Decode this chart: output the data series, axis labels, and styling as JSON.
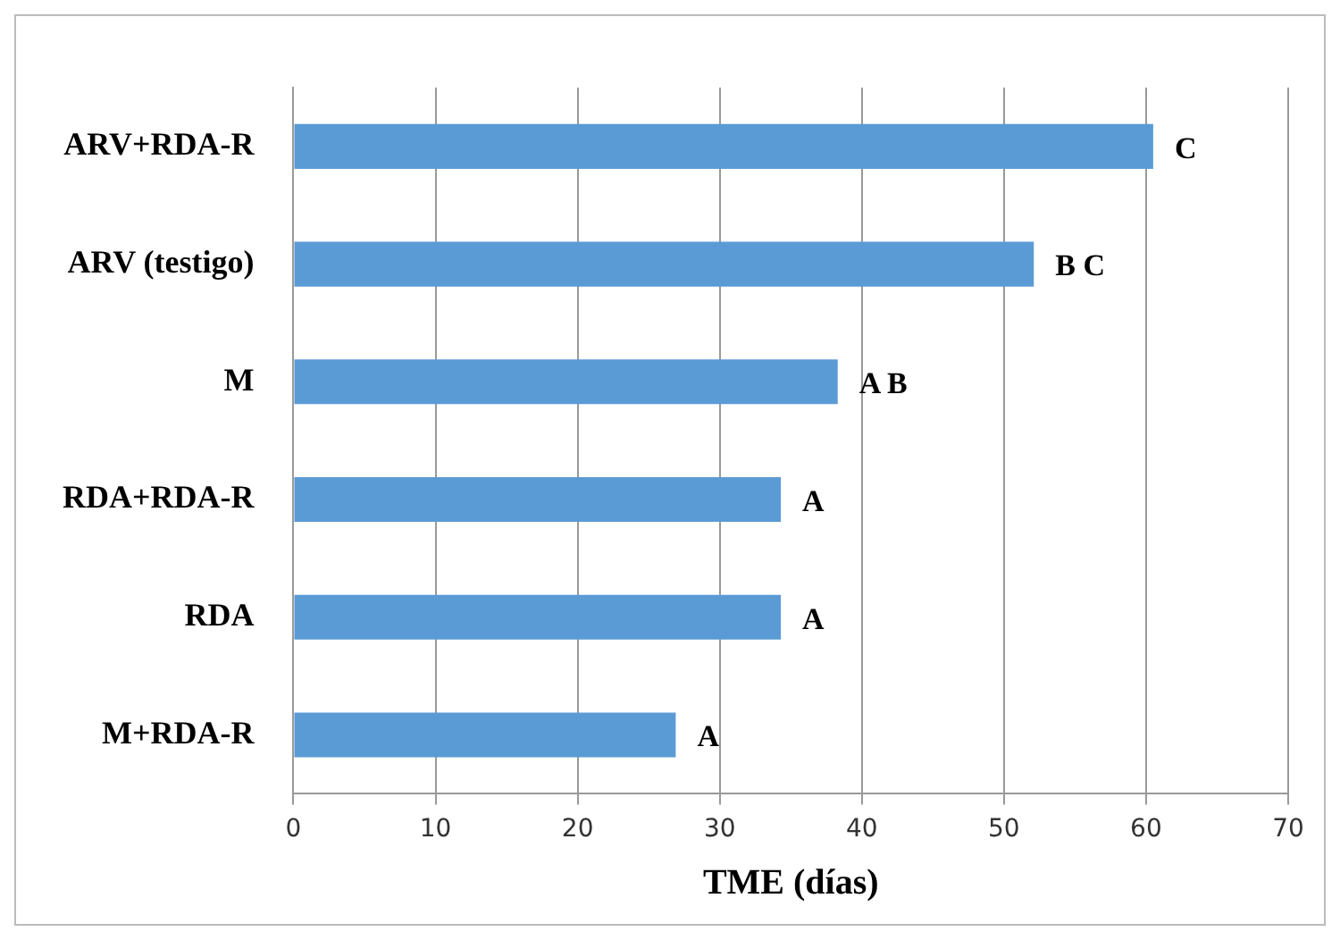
{
  "chart_data": {
    "type": "bar",
    "orientation": "horizontal",
    "xlabel": "TME (días)",
    "categories": [
      "ARV+RDA-R",
      "ARV (testigo)",
      "M",
      "RDA+RDA-R",
      "RDA",
      "M+RDA-R"
    ],
    "values": [
      60.5,
      52.1,
      38.3,
      34.3,
      34.3,
      26.9
    ],
    "value_labels": [
      "C",
      "B C",
      "A B",
      "A",
      "A",
      "A"
    ],
    "color": "#5b9bd5",
    "xlim": [
      0,
      70
    ],
    "xticks": [
      0,
      10,
      20,
      30,
      40,
      50,
      60,
      70
    ],
    "grid": "x",
    "legend": false
  }
}
